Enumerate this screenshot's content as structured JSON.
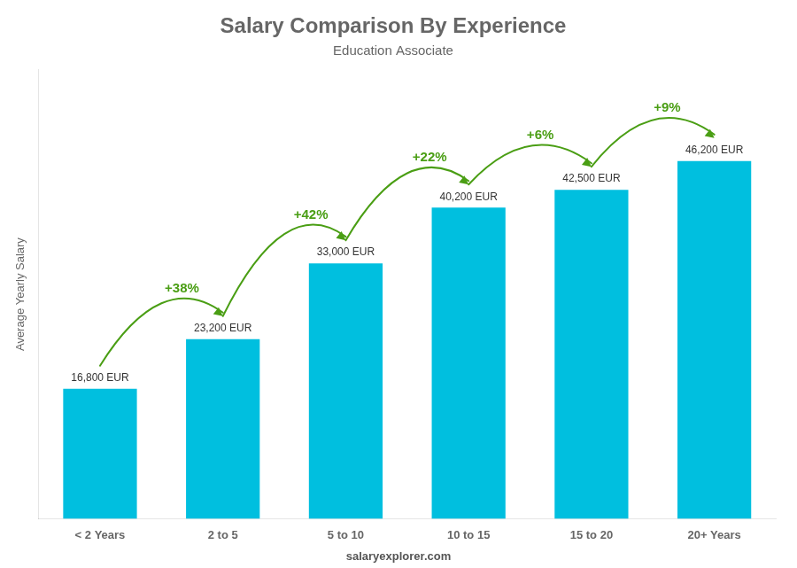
{
  "chart_data": {
    "type": "bar",
    "title": "Salary Comparison By Experience",
    "subtitle": "Education Associate",
    "y_label": "Average Yearly Salary",
    "footer": "salaryexplorer.com",
    "categories": [
      "< 2 Years",
      "2 to 5",
      "5 to 10",
      "10 to 15",
      "15 to 20",
      "20+ Years"
    ],
    "values": [
      16800,
      23200,
      33000,
      40200,
      42500,
      46200
    ],
    "value_labels": [
      "16,800 EUR",
      "23,200 EUR",
      "33,000 EUR",
      "40,200 EUR",
      "42,500 EUR",
      "46,200 EUR"
    ],
    "data_labels": true,
    "color": "#00bfdf",
    "ylim": [
      0,
      58000
    ],
    "tick_labels": "x",
    "grid": false,
    "annotations": [
      {
        "text": "+38%",
        "from": "< 2 Years",
        "to": "2 to 5"
      },
      {
        "text": "+42%",
        "from": "2 to 5",
        "to": "5 to 10"
      },
      {
        "text": "+22%",
        "from": "5 to 10",
        "to": "10 to 15"
      },
      {
        "text": "+6%",
        "from": "10 to 15",
        "to": "15 to 20"
      },
      {
        "text": "+9%",
        "from": "15 to 20",
        "to": "20+ Years"
      }
    ]
  }
}
